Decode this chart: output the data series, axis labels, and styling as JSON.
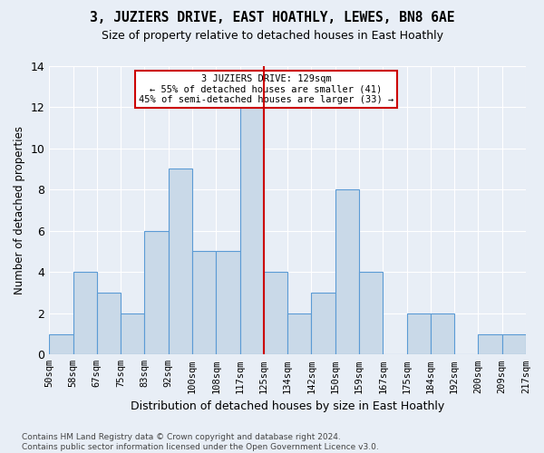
{
  "title": "3, JUZIERS DRIVE, EAST HOATHLY, LEWES, BN8 6AE",
  "subtitle": "Size of property relative to detached houses in East Hoathly",
  "xlabel": "Distribution of detached houses by size in East Hoathly",
  "ylabel": "Number of detached properties",
  "bin_edges": [
    "50sqm",
    "58sqm",
    "67sqm",
    "75sqm",
    "83sqm",
    "92sqm",
    "100sqm",
    "108sqm",
    "117sqm",
    "125sqm",
    "134sqm",
    "142sqm",
    "150sqm",
    "159sqm",
    "167sqm",
    "175sqm",
    "184sqm",
    "192sqm",
    "200sqm",
    "209sqm",
    "217sqm"
  ],
  "bar_heights": [
    1,
    4,
    3,
    2,
    6,
    9,
    5,
    5,
    12,
    4,
    2,
    3,
    8,
    4,
    0,
    2,
    2,
    0,
    1,
    1
  ],
  "bar_color": "#c9d9e8",
  "bar_edge_color": "#5b9bd5",
  "vline_position": 9.0,
  "vline_color": "#cc0000",
  "annotation_text": "3 JUZIERS DRIVE: 129sqm\n← 55% of detached houses are smaller (41)\n45% of semi-detached houses are larger (33) →",
  "annotation_box_color": "#ffffff",
  "annotation_box_edge": "#cc0000",
  "ylim": [
    0,
    14
  ],
  "yticks": [
    0,
    2,
    4,
    6,
    8,
    10,
    12,
    14
  ],
  "footer": "Contains HM Land Registry data © Crown copyright and database right 2024.\nContains public sector information licensed under the Open Government Licence v3.0.",
  "background_color": "#e8eef6",
  "plot_bg_color": "#e8eef6"
}
